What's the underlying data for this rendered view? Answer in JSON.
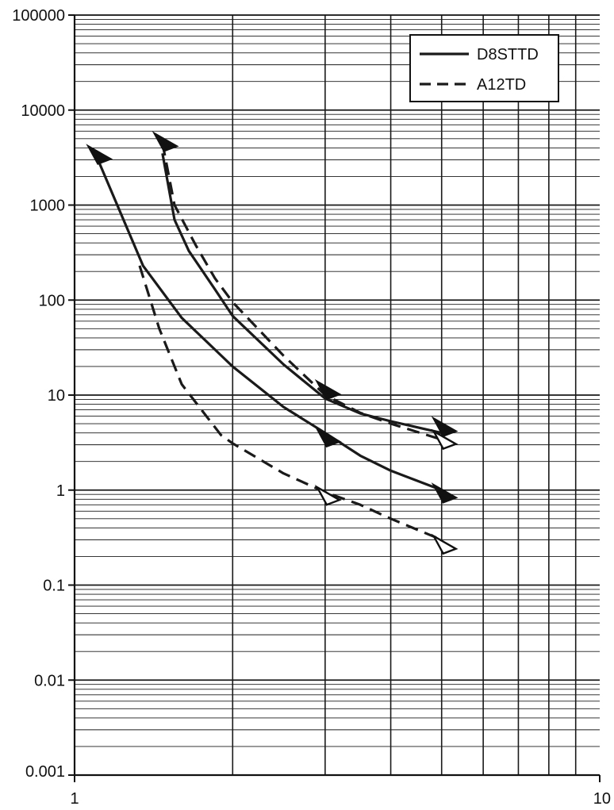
{
  "chart_data": {
    "type": "line",
    "title": "",
    "xlabel": "",
    "ylabel": "",
    "xscale": "log",
    "yscale": "log",
    "xlim": [
      1,
      10
    ],
    "ylim": [
      0.001,
      100000
    ],
    "grid": true,
    "legend_position": "top-right",
    "x_tick_labels": [
      "1",
      "10"
    ],
    "y_tick_labels": [
      "100000",
      "10000",
      "1000",
      "100",
      "10",
      "1",
      "0.1",
      "0.01",
      "0.001"
    ],
    "series": [
      {
        "name": "D8STTD",
        "style": "solid",
        "color": "#1a1a1a",
        "curves": [
          {
            "x": [
              1.1,
              1.35,
              1.6,
              2.0,
              2.5,
              3.0,
              3.5,
              4.0,
              5.0
            ],
            "y": [
              3300,
              230,
              65,
              20,
              7.5,
              4.0,
              2.3,
              1.6,
              1.0
            ]
          },
          {
            "x": [
              1.47,
              1.55,
              1.65,
              1.85,
              2.0,
              2.5,
              3.0,
              3.5,
              4.0,
              5.0
            ],
            "y": [
              3500,
              700,
              330,
              130,
              68,
              21,
              9.2,
              6.4,
              5.3,
              4.0
            ]
          }
        ]
      },
      {
        "name": "A12TD",
        "style": "dashed",
        "color": "#1a1a1a",
        "curves": [
          {
            "x": [
              1.33,
              1.45,
              1.6,
              1.9,
              2.0,
              2.5,
              3.0,
              3.5,
              4.0,
              5.0
            ],
            "y": [
              230,
              50,
              13,
              3.8,
              3.1,
              1.5,
              0.95,
              0.7,
              0.5,
              0.3
            ]
          },
          {
            "x": [
              1.47,
              1.55,
              1.7,
              1.85,
              2.0,
              2.5,
              3.0,
              3.5,
              4.0,
              5.0
            ],
            "y": [
              4500,
              1000,
              380,
              170,
              95,
              26,
              10,
              6.5,
              5.0,
              3.4
            ]
          }
        ]
      }
    ],
    "markers": [
      {
        "x": 1.1,
        "y": 3300,
        "fill": "filled",
        "series": "D8STTD"
      },
      {
        "x": 1.47,
        "y": 4500,
        "fill": "filled",
        "series": "D8STTD"
      },
      {
        "x": 3.0,
        "y": 11,
        "fill": "filled",
        "series": "D8STTD"
      },
      {
        "x": 3.0,
        "y": 3.5,
        "fill": "filled",
        "series": "D8STTD"
      },
      {
        "x": 5.0,
        "y": 4.5,
        "fill": "filled",
        "series": "D8STTD"
      },
      {
        "x": 5.0,
        "y": 0.9,
        "fill": "filled",
        "series": "D8STTD"
      },
      {
        "x": 5.0,
        "y": 3.3,
        "fill": "open",
        "series": "A12TD"
      },
      {
        "x": 3.0,
        "y": 0.85,
        "fill": "open",
        "series": "A12TD"
      },
      {
        "x": 5.0,
        "y": 0.26,
        "fill": "open",
        "series": "A12TD"
      }
    ]
  }
}
